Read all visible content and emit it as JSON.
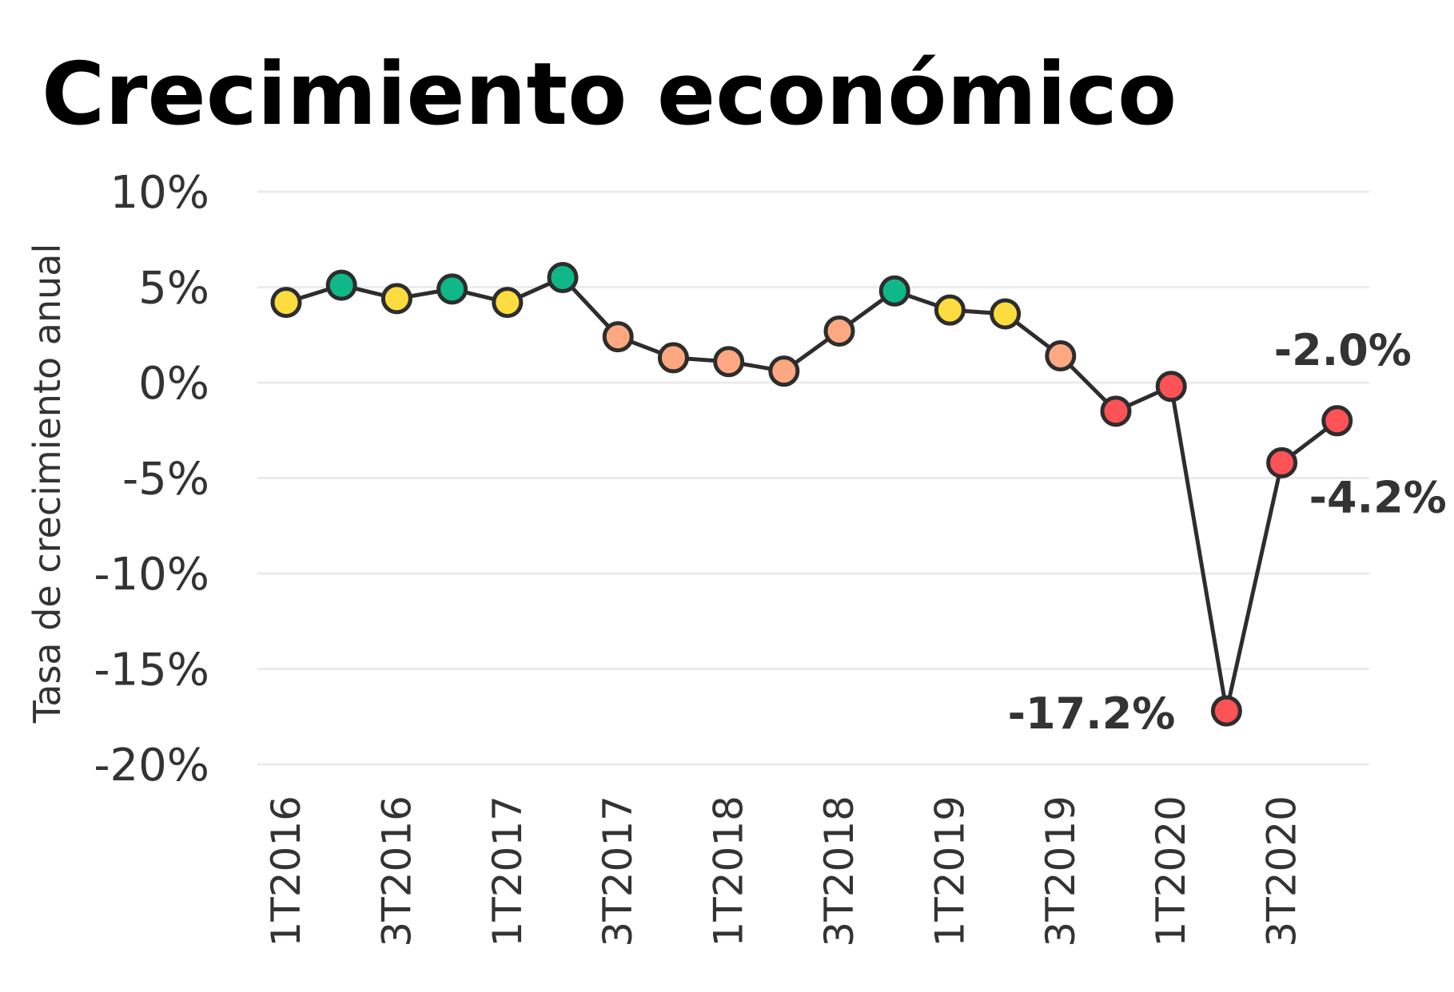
{
  "chart_data": {
    "type": "line",
    "title": "Crecimiento económico",
    "ylabel": "Tasa de crecimiento anual",
    "xlabel": "",
    "ylim": [
      -20,
      10
    ],
    "yticks": [
      10,
      5,
      0,
      -5,
      -10,
      -15,
      -20
    ],
    "ytick_labels": [
      "10%",
      "5%",
      "0%",
      "-5%",
      "-10%",
      "-15%",
      "-20%"
    ],
    "x": [
      "1T2016",
      "2T2016",
      "3T2016",
      "4T2016",
      "1T2017",
      "2T2017",
      "3T2017",
      "4T2017",
      "1T2018",
      "2T2018",
      "3T2018",
      "4T2018",
      "1T2019",
      "2T2019",
      "3T2019",
      "4T2019",
      "1T2020",
      "2T2020",
      "3T2020",
      "4T2020"
    ],
    "xtick_labels_shown": [
      "1T2016",
      "3T2016",
      "1T2017",
      "3T2017",
      "1T2018",
      "3T2018",
      "1T2019",
      "3T2019",
      "1T2020",
      "3T2020"
    ],
    "series": [
      {
        "values": [
          4.2,
          5.1,
          4.4,
          4.9,
          4.2,
          5.5,
          2.4,
          1.3,
          1.1,
          0.6,
          2.7,
          4.8,
          3.8,
          3.6,
          1.4,
          -1.5,
          -0.2,
          -17.2,
          -4.2,
          -2.0
        ],
        "point_colors": [
          "#fddc3f",
          "#10b889",
          "#fddc3f",
          "#10b889",
          "#fddc3f",
          "#10b889",
          "#fda881",
          "#fda881",
          "#fda881",
          "#fda881",
          "#fda881",
          "#10b889",
          "#fddc3f",
          "#fddc3f",
          "#fda881",
          "#fd5356",
          "#fd5356",
          "#fd5356",
          "#fd5356",
          "#fd5356"
        ]
      }
    ],
    "annotations": [
      {
        "x": "2T2020",
        "text": "-17.2%"
      },
      {
        "x": "3T2020",
        "text": "-4.2%"
      },
      {
        "x": "4T2020",
        "text": "-2.0%"
      }
    ],
    "grid": true,
    "line_color": "#2d2d2d"
  }
}
